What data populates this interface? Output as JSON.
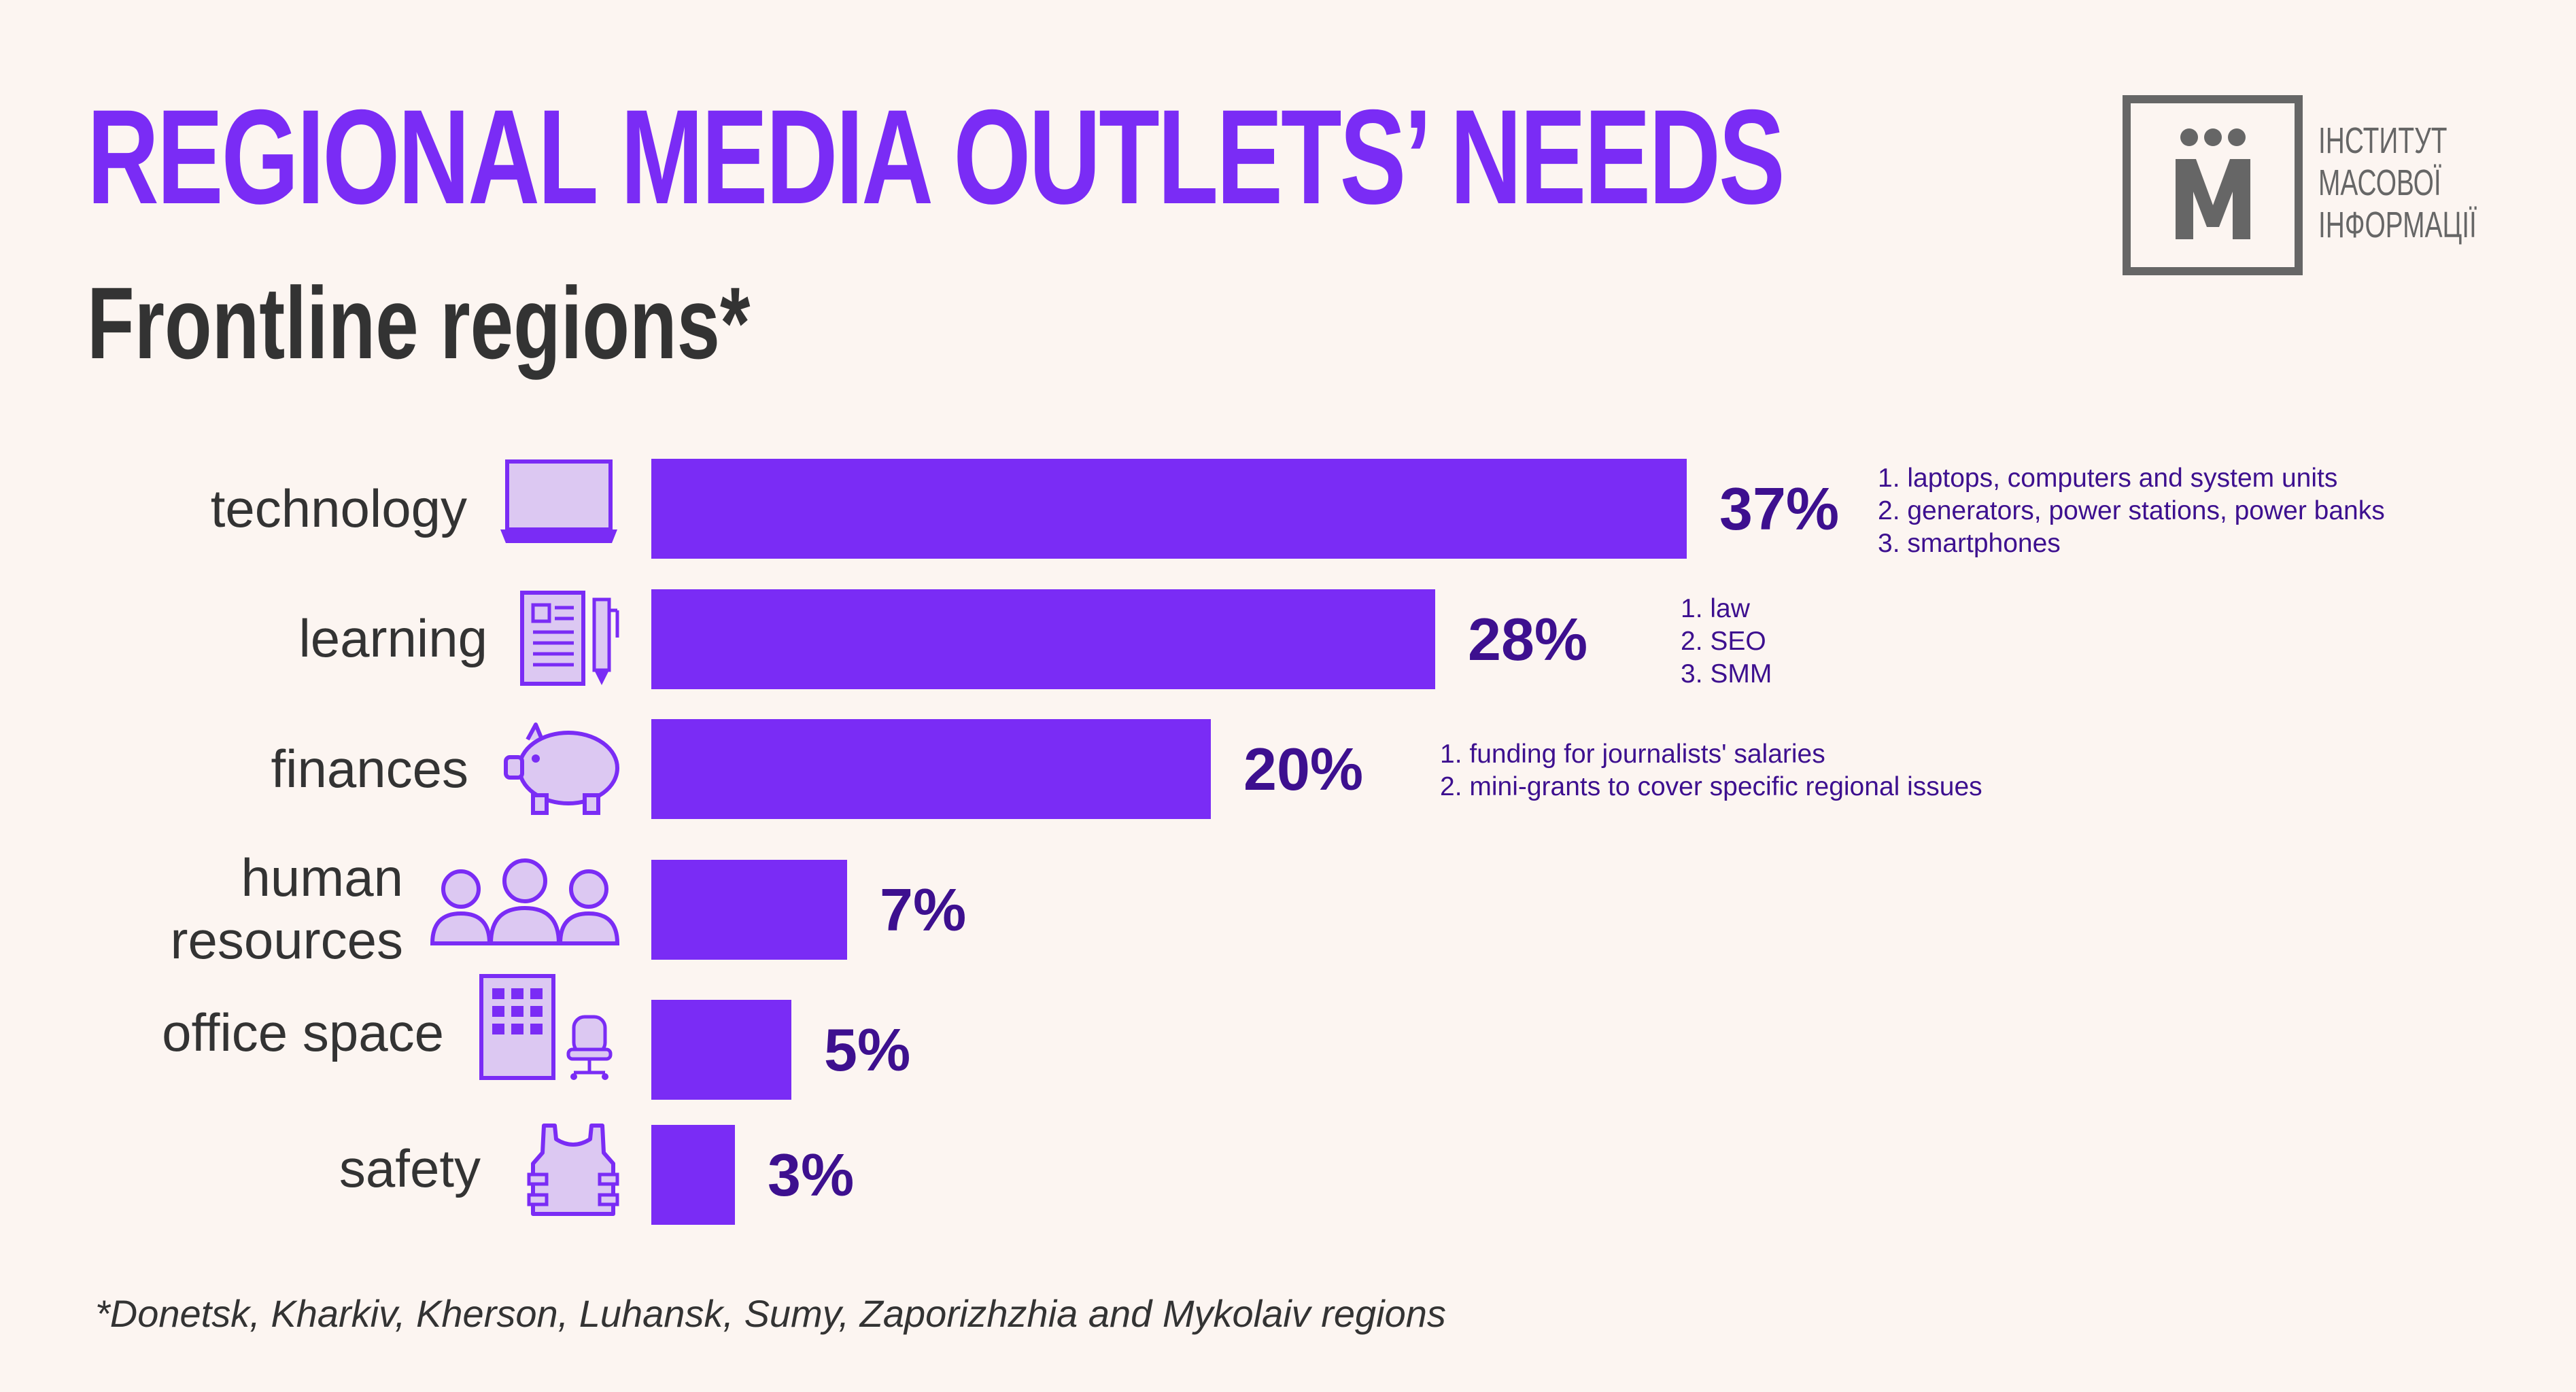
{
  "title": "REGIONAL MEDIA OUTLETS’ NEEDS",
  "subtitle": "Frontline regions*",
  "logo": {
    "letter": "М",
    "lines": [
      "ІНСТИТУТ",
      "МАСОВОЇ",
      "ІНФОРМАЦІЇ"
    ]
  },
  "footnote": "*Donetsk, Kharkiv, Kherson, Luhansk, Sumy, Zaporizhzhia and Mykolaiv regions",
  "colors": {
    "bar": "#7a2cf5",
    "percent_text": "#3d108f",
    "icon_fill": "#dcc8f2",
    "icon_stroke": "#7a2cf5"
  },
  "chart_data": {
    "type": "bar",
    "orientation": "horizontal",
    "categories": [
      "technology",
      "learning",
      "finances",
      "human resources",
      "office space",
      "safety"
    ],
    "category_lines": [
      [
        "technology"
      ],
      [
        "learning"
      ],
      [
        "finances"
      ],
      [
        "human",
        "resources"
      ],
      [
        "office space"
      ],
      [
        "safety"
      ]
    ],
    "values": [
      37,
      28,
      20,
      7,
      5,
      3
    ],
    "value_labels": [
      "37%",
      "28%",
      "20%",
      "7%",
      "5%",
      "3%"
    ],
    "icons": [
      "laptop-icon",
      "document-pen-icon",
      "piggy-bank-icon",
      "people-icon",
      "office-building-chair-icon",
      "body-armor-icon"
    ],
    "details": [
      [
        "1. laptops, computers and system units",
        "2. generators, power stations, power banks",
        "3. smartphones"
      ],
      [
        "1. law",
        "2. SEO",
        "3. SMM"
      ],
      [
        "1. funding for journalists' salaries",
        "2. mini-grants to cover specific regional issues"
      ],
      [],
      [],
      []
    ],
    "xlim": [
      0,
      37
    ],
    "grid": false,
    "legend": "none"
  }
}
